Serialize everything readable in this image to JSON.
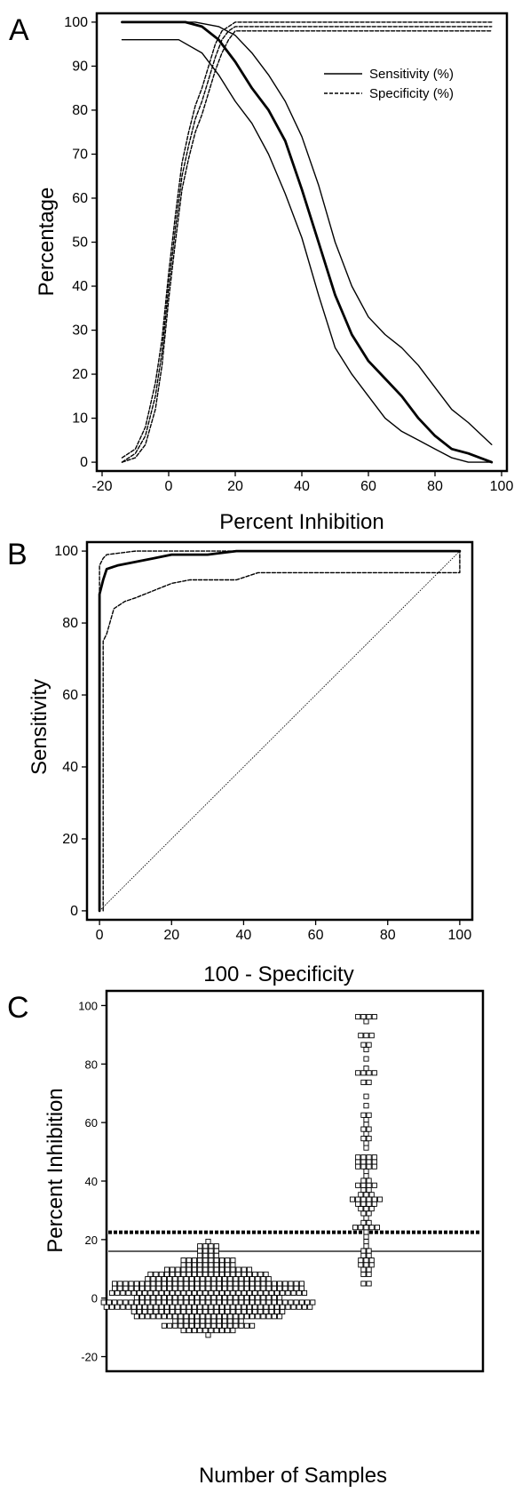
{
  "chart_data": [
    {
      "panel": "A",
      "type": "line",
      "xlabel": "Percent Inhibition",
      "ylabel": "Percentage",
      "xlim": [
        -20,
        100
      ],
      "ylim": [
        -2,
        102
      ],
      "xticks": [
        -20,
        0,
        20,
        40,
        60,
        80,
        100
      ],
      "yticks": [
        0,
        10,
        20,
        30,
        40,
        50,
        60,
        70,
        80,
        90,
        100
      ],
      "legend": {
        "placement": "top-right",
        "entries": [
          {
            "label": "Sensitivity (%)",
            "style": "solid"
          },
          {
            "label": "Specificity (%)",
            "style": "dashed"
          }
        ]
      },
      "series": [
        {
          "name": "Sensitivity (%)",
          "role": "estimate",
          "style": "solid",
          "x": [
            -14,
            5,
            10,
            15,
            20,
            25,
            30,
            35,
            40,
            45,
            50,
            55,
            60,
            65,
            70,
            75,
            80,
            85,
            90,
            97
          ],
          "y": [
            100,
            100,
            99,
            96,
            91,
            85,
            80,
            73,
            62,
            50,
            38,
            29,
            23,
            19,
            15,
            10,
            6,
            3,
            2,
            0
          ]
        },
        {
          "role": "upper-ci",
          "style": "solid",
          "x": [
            -14,
            8,
            15,
            20,
            25,
            30,
            35,
            40,
            45,
            50,
            55,
            60,
            65,
            70,
            75,
            80,
            85,
            90,
            97
          ],
          "y": [
            100,
            100,
            99,
            97,
            93,
            88,
            82,
            74,
            63,
            50,
            40,
            33,
            29,
            26,
            22,
            17,
            12,
            9,
            4
          ]
        },
        {
          "role": "lower-ci",
          "style": "solid",
          "x": [
            -14,
            3,
            10,
            15,
            20,
            25,
            30,
            35,
            40,
            45,
            50,
            55,
            60,
            65,
            70,
            75,
            80,
            85,
            90,
            97
          ],
          "y": [
            96,
            96,
            93,
            88,
            82,
            77,
            70,
            61,
            51,
            38,
            26,
            20,
            15,
            10,
            7,
            5,
            3,
            1,
            0,
            0
          ]
        },
        {
          "name": "Specificity (%)",
          "role": "estimate",
          "style": "dashed",
          "x": [
            -14,
            -10,
            -7,
            -4,
            -2,
            0,
            2,
            4,
            6,
            8,
            10,
            12,
            14,
            16,
            18,
            20,
            97
          ],
          "y": [
            0,
            2,
            6,
            15,
            25,
            40,
            53,
            65,
            72,
            78,
            82,
            87,
            92,
            96,
            98,
            99,
            99
          ]
        },
        {
          "role": "upper-ci",
          "style": "dashed",
          "x": [
            -14,
            -10,
            -7,
            -4,
            -2,
            0,
            2,
            4,
            6,
            8,
            10,
            12,
            14,
            16,
            18,
            20,
            97
          ],
          "y": [
            1,
            3,
            8,
            18,
            28,
            43,
            56,
            68,
            75,
            81,
            85,
            90,
            95,
            98,
            99,
            100,
            100
          ]
        },
        {
          "role": "lower-ci",
          "style": "dashed",
          "x": [
            -14,
            -10,
            -7,
            -4,
            -2,
            0,
            2,
            4,
            6,
            8,
            10,
            12,
            14,
            16,
            18,
            20,
            97
          ],
          "y": [
            0,
            1,
            4,
            12,
            22,
            37,
            50,
            62,
            69,
            75,
            79,
            84,
            89,
            93,
            96,
            98,
            98
          ]
        }
      ]
    },
    {
      "panel": "B",
      "type": "line",
      "xlabel": "100 - Specificity",
      "ylabel": "Sensitivity",
      "xlim": [
        -2,
        102
      ],
      "ylim": [
        -2,
        102
      ],
      "xticks": [
        0,
        20,
        40,
        60,
        80,
        100
      ],
      "yticks": [
        0,
        20,
        40,
        60,
        80,
        100
      ],
      "series": [
        {
          "role": "roc",
          "style": "solid",
          "x": [
            0,
            0,
            1,
            2,
            5,
            10,
            15,
            20,
            30,
            38,
            100
          ],
          "y": [
            0,
            88,
            92,
            95,
            96,
            97,
            98,
            99,
            99,
            100,
            100
          ]
        },
        {
          "role": "upper-ci",
          "style": "dashed",
          "x": [
            0,
            0,
            1,
            2,
            10,
            38,
            100,
            100
          ],
          "y": [
            0,
            96,
            98,
            99,
            100,
            100,
            100,
            100
          ]
        },
        {
          "role": "lower-ci",
          "style": "dashed",
          "x": [
            1,
            1,
            2,
            4,
            7,
            10,
            15,
            20,
            25,
            38,
            44,
            100,
            100
          ],
          "y": [
            0,
            75,
            77,
            84,
            86,
            87,
            89,
            91,
            92,
            92,
            94,
            94,
            100
          ]
        },
        {
          "role": "reference-diagonal",
          "style": "dotted",
          "x": [
            0,
            100
          ],
          "y": [
            0,
            100
          ]
        }
      ]
    },
    {
      "panel": "C",
      "type": "scatter",
      "xlabel": "Number of Samples",
      "ylabel": "Percent Inhibition",
      "ylim": [
        -25,
        105
      ],
      "yticks": [
        -20,
        0,
        20,
        40,
        60,
        80,
        100
      ],
      "groups": [
        {
          "role": "negative",
          "count": 400,
          "min": -14,
          "max": 21
        },
        {
          "role": "positive",
          "count": 100,
          "min": 4,
          "max": 97
        }
      ],
      "cutoff_lines": [
        {
          "value": 22.5,
          "style": "dotted"
        },
        {
          "value": 16,
          "style": "solid"
        }
      ]
    }
  ]
}
